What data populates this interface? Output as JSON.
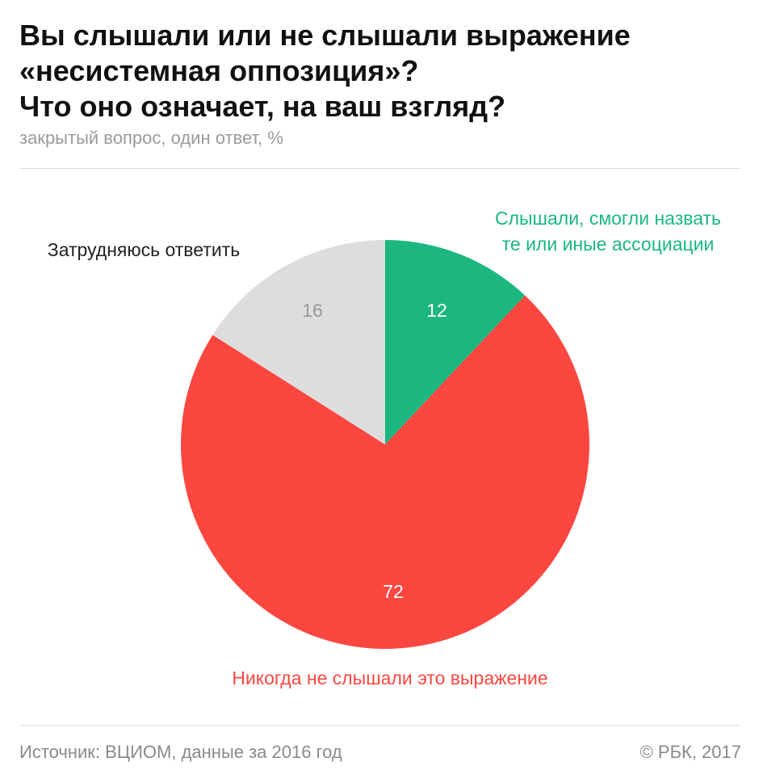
{
  "chart_data": {
    "type": "pie",
    "title": [
      "Вы слышали или не слышали выражение",
      "«несистемная оппозиция»?",
      "Что оно означает, на ваш взгляд?"
    ],
    "subtitle": "закрытый вопрос, один ответ, %",
    "slices": [
      {
        "label": [
          "Слышали, смогли назвать",
          "те или иные ассоциации"
        ],
        "value": 12,
        "value_label": "12",
        "color": "#1bb77f",
        "label_color": "#1bb77f",
        "value_color": "#ffffff"
      },
      {
        "label": [
          "Никогда не слышали это выражение"
        ],
        "value": 72,
        "value_label": "72",
        "color": "#fb4740",
        "label_color": "#fb4740",
        "value_color": "#ffffff"
      },
      {
        "label": [
          "Затрудняюсь ответить"
        ],
        "value": 16,
        "value_label": "16",
        "color": "#dddddd",
        "label_color": "#222222",
        "value_color": "#9a9a9a"
      }
    ]
  },
  "footer": {
    "source": "Источник: ВЦИОМ, данные за 2016 год",
    "copyright": "© РБК, 2017"
  }
}
